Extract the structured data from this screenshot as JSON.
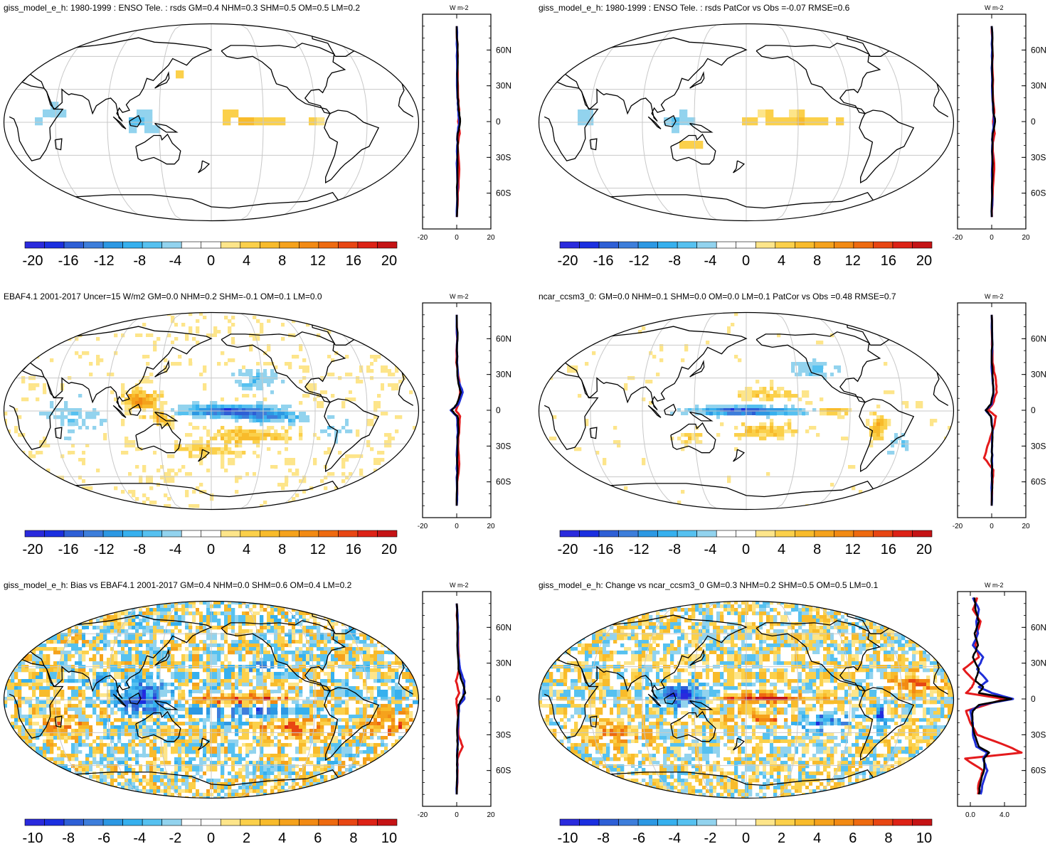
{
  "panels": [
    {
      "title": "giss_model_e_h: 1980-1999 : ENSO Tele. : rsds GM=0.4 NHM=0.3 SHM=0.5 OM=0.5 LM=0.2",
      "colorbar_ticks": [
        "-20",
        "-16",
        "-12",
        "-8",
        "-4",
        "0",
        "4",
        "8",
        "12",
        "16",
        "20"
      ],
      "profile_unit": "W m-2",
      "profile_xticks": [
        "-20",
        "0",
        "20"
      ],
      "profile_xlim": [
        -20,
        20
      ],
      "lat_labels": [
        "60N",
        "30N",
        "0",
        "30S",
        "60S"
      ],
      "pattern": "model",
      "amp": 1.0
    },
    {
      "title": "giss_model_e_h: 1980-1999 : ENSO Tele. : rsds PatCor vs Obs =-0.07 RMSE=0.6",
      "colorbar_ticks": [
        "-20",
        "-16",
        "-12",
        "-8",
        "-4",
        "0",
        "4",
        "8",
        "12",
        "16",
        "20"
      ],
      "profile_unit": "W m-2",
      "profile_xticks": [
        "-20",
        "0",
        "20"
      ],
      "profile_xlim": [
        -20,
        20
      ],
      "lat_labels": [
        "60N",
        "30N",
        "0",
        "30S",
        "60S"
      ],
      "pattern": "model",
      "amp": 1.0
    },
    {
      "title": "EBAF4.1 2001-2017 Uncer=15 W/m2 GM=0.0 NHM=0.2 SHM=-0.1 OM=0.1 LM=0.0",
      "colorbar_ticks": [
        "-20",
        "-16",
        "-12",
        "-8",
        "-4",
        "0",
        "4",
        "8",
        "12",
        "16",
        "20"
      ],
      "profile_unit": "W m-2",
      "profile_xticks": [
        "-20",
        "0",
        "20"
      ],
      "profile_xlim": [
        -20,
        20
      ],
      "lat_labels": [
        "60N",
        "30N",
        "0",
        "30S",
        "60S"
      ],
      "pattern": "obs",
      "amp": 1.4
    },
    {
      "title": "ncar_ccsm3_0: GM=0.0 NHM=0.1 SHM=0.0 OM=0.0 LM=0.1 PatCor vs Obs =0.48 RMSE=0.7",
      "colorbar_ticks": [
        "-20",
        "-16",
        "-12",
        "-8",
        "-4",
        "0",
        "4",
        "8",
        "12",
        "16",
        "20"
      ],
      "profile_unit": "W m-2",
      "profile_xticks": [
        "-20",
        "0",
        "20"
      ],
      "profile_xlim": [
        -20,
        20
      ],
      "lat_labels": [
        "60N",
        "30N",
        "0",
        "30S",
        "60S"
      ],
      "pattern": "ncar",
      "amp": 1.3
    },
    {
      "title": "giss_model_e_h: Bias vs EBAF4.1 2001-2017 GM=0.4 NHM=0.0 SHM=0.6 OM=0.4 LM=0.2",
      "colorbar_ticks": [
        "-10",
        "-8",
        "-6",
        "-4",
        "-2",
        "0",
        "2",
        "4",
        "6",
        "8",
        "10"
      ],
      "profile_unit": "W m-2",
      "profile_xticks": [
        "-20",
        "0",
        "20"
      ],
      "profile_xlim": [
        -20,
        20
      ],
      "lat_labels": [
        "60N",
        "30N",
        "0",
        "30S",
        "60S"
      ],
      "pattern": "bias",
      "amp": 1.6
    },
    {
      "title": "giss_model_e_h: Change vs ncar_ccsm3_0 GM=0.3 NHM=0.2 SHM=0.5 OM=0.5 LM=0.1",
      "colorbar_ticks": [
        "-10",
        "-8",
        "-6",
        "-4",
        "-2",
        "0",
        "2",
        "4",
        "6",
        "8",
        "10"
      ],
      "profile_unit": "W m-2",
      "profile_xticks": [
        "0.0",
        "4.0"
      ],
      "profile_xlim": [
        -1.5,
        6.5
      ],
      "lat_labels": [
        "60N",
        "30N",
        "0",
        "30S",
        "60S"
      ],
      "pattern": "change",
      "amp": 1.6
    }
  ],
  "chart_data": [
    {
      "type": "heatmap",
      "title": "giss_model_e_h: 1980-1999 : ENSO Tele. : rsds GM=0.4 NHM=0.3 SHM=0.5 OM=0.5 LM=0.2",
      "projection": "Robinson, Pacific-centred",
      "colorbar_range": [
        -22,
        22
      ],
      "colorbar_ticks": [
        -20,
        -16,
        -12,
        -8,
        -4,
        0,
        4,
        8,
        12,
        16,
        20
      ],
      "zonal_mean_profile": {
        "xlabel": "W m-2",
        "xlim": [
          -20,
          20
        ],
        "lat": [
          80,
          60,
          40,
          20,
          10,
          0,
          -10,
          -20,
          -40,
          -60,
          -80
        ],
        "series": [
          {
            "name": "black",
            "values": [
              0,
              0.5,
              0.3,
              0.6,
              1.0,
              2.0,
              0.6,
              0.5,
              0.4,
              0.3,
              0.1
            ]
          },
          {
            "name": "red",
            "values": [
              0,
              0.4,
              0.6,
              0.8,
              1.5,
              0.8,
              1.8,
              0.6,
              1.5,
              0.6,
              0.1
            ]
          },
          {
            "name": "blue",
            "values": [
              0,
              0.3,
              0.2,
              0.4,
              0.8,
              1.5,
              0.5,
              0.3,
              0.2,
              0.2,
              0.1
            ]
          }
        ]
      }
    },
    {
      "type": "heatmap",
      "title": "giss_model_e_h: 1980-1999 : ENSO Tele. : rsds PatCor vs Obs =-0.07 RMSE=0.6",
      "projection": "Robinson, Pacific-centred",
      "colorbar_range": [
        -22,
        22
      ],
      "colorbar_ticks": [
        -20,
        -16,
        -12,
        -8,
        -4,
        0,
        4,
        8,
        12,
        16,
        20
      ],
      "zonal_mean_profile": {
        "xlabel": "W m-2",
        "xlim": [
          -20,
          20
        ],
        "lat": [
          80,
          60,
          40,
          20,
          10,
          0,
          -10,
          -20,
          -40,
          -60,
          -80
        ],
        "series": [
          {
            "name": "black",
            "values": [
              0,
              0.5,
              0.3,
              0.6,
              1.0,
              2.0,
              0.6,
              0.5,
              0.4,
              0.3,
              0.1
            ]
          },
          {
            "name": "red",
            "values": [
              0,
              0.4,
              0.6,
              0.8,
              1.5,
              0.8,
              1.8,
              0.6,
              1.5,
              0.6,
              0.1
            ]
          },
          {
            "name": "blue",
            "values": [
              0,
              0.3,
              0.2,
              0.4,
              0.8,
              1.5,
              0.5,
              0.3,
              0.2,
              0.2,
              0.1
            ]
          }
        ]
      }
    },
    {
      "type": "heatmap",
      "title": "EBAF4.1 2001-2017 Uncer=15 W/m2 GM=0.0 NHM=0.2 SHM=-0.1 OM=0.1 LM=0.0",
      "projection": "Robinson, Pacific-centred",
      "colorbar_range": [
        -22,
        22
      ],
      "colorbar_ticks": [
        -20,
        -16,
        -12,
        -8,
        -4,
        0,
        4,
        8,
        12,
        16,
        20
      ],
      "zonal_mean_profile": {
        "xlabel": "W m-2",
        "xlim": [
          -20,
          20
        ],
        "lat": [
          80,
          60,
          40,
          25,
          15,
          5,
          0,
          -5,
          -15,
          -30,
          -45,
          -60,
          -80
        ],
        "series": [
          {
            "name": "black",
            "values": [
              0,
              0.5,
              0,
              0.8,
              2.5,
              0,
              -3.0,
              0.5,
              1.0,
              0.5,
              0.3,
              0.2,
              0
            ]
          },
          {
            "name": "red",
            "values": [
              0,
              0.3,
              -0.2,
              1.5,
              2.0,
              1.0,
              -0.5,
              2.0,
              1.5,
              0.8,
              1.5,
              0.3,
              0
            ]
          },
          {
            "name": "blue",
            "values": [
              0,
              0.4,
              0.2,
              1.0,
              3.5,
              1.0,
              -3.5,
              0,
              0.5,
              0.3,
              0.2,
              0.1,
              0
            ]
          }
        ]
      }
    },
    {
      "type": "heatmap",
      "title": "ncar_ccsm3_0: GM=0.0 NHM=0.1 SHM=0.0 OM=0.0 LM=0.1 PatCor vs Obs =0.48 RMSE=0.7",
      "projection": "Robinson, Pacific-centred",
      "colorbar_range": [
        -22,
        22
      ],
      "colorbar_ticks": [
        -20,
        -16,
        -12,
        -8,
        -4,
        0,
        4,
        8,
        12,
        16,
        20
      ],
      "zonal_mean_profile": {
        "xlabel": "W m-2",
        "xlim": [
          -20,
          20
        ],
        "lat": [
          80,
          60,
          40,
          25,
          15,
          5,
          0,
          -5,
          -15,
          -30,
          -40,
          -50,
          -60,
          -80
        ],
        "series": [
          {
            "name": "black",
            "values": [
              0,
              0.3,
              0,
              0.8,
              1.0,
              -0.5,
              -3.5,
              -0.5,
              0.5,
              0.2,
              0,
              0.2,
              0.2,
              0
            ]
          },
          {
            "name": "red",
            "values": [
              0,
              0.2,
              0.5,
              2.5,
              3.0,
              0.5,
              -2.0,
              2.5,
              1.0,
              -2.5,
              -4.5,
              1.0,
              0.5,
              0
            ]
          },
          {
            "name": "blue",
            "values": [
              0,
              0.3,
              0,
              0.5,
              1.0,
              0,
              -3.5,
              -0.5,
              0.5,
              0.3,
              0.2,
              0.2,
              0.1,
              0
            ]
          }
        ]
      }
    },
    {
      "type": "heatmap",
      "title": "giss_model_e_h: Bias vs EBAF4.1 2001-2017 GM=0.4 NHM=0.0 SHM=0.6 OM=0.4 LM=0.2",
      "projection": "Robinson, Pacific-centred",
      "colorbar_range": [
        -11,
        11
      ],
      "colorbar_ticks": [
        -10,
        -8,
        -6,
        -4,
        -2,
        0,
        2,
        4,
        6,
        8,
        10
      ],
      "zonal_mean_profile": {
        "xlabel": "W m-2",
        "xlim": [
          -20,
          20
        ],
        "lat": [
          80,
          60,
          40,
          25,
          15,
          5,
          0,
          -5,
          -15,
          -30,
          -40,
          -50,
          -60,
          -80
        ],
        "series": [
          {
            "name": "black",
            "values": [
              0,
              0.5,
              0.5,
              1.0,
              3.0,
              5.0,
              3.0,
              1.0,
              0.8,
              0.3,
              0.5,
              0.3,
              0.2,
              0
            ]
          },
          {
            "name": "red",
            "values": [
              0,
              0.5,
              1.0,
              1.5,
              -0.5,
              1.5,
              -0.3,
              0,
              0.8,
              1.0,
              3.5,
              0.5,
              0.5,
              0
            ]
          },
          {
            "name": "blue",
            "values": [
              0,
              0.8,
              0.8,
              2.0,
              4.5,
              4.0,
              4.5,
              1.5,
              1.0,
              0.5,
              0.5,
              0.3,
              0.2,
              0
            ]
          }
        ]
      }
    },
    {
      "type": "heatmap",
      "title": "giss_model_e_h: Change vs ncar_ccsm3_0 GM=0.3 NHM=0.2 SHM=0.5 OM=0.5 LM=0.1",
      "projection": "Robinson, Pacific-centred",
      "colorbar_range": [
        -11,
        11
      ],
      "colorbar_ticks": [
        -10,
        -8,
        -6,
        -4,
        -2,
        0,
        2,
        4,
        6,
        8,
        10
      ],
      "zonal_mean_profile": {
        "xlabel": "W m-2",
        "xlim": [
          -1.5,
          6.5
        ],
        "lat": [
          85,
          75,
          65,
          55,
          45,
          35,
          25,
          15,
          10,
          5,
          0,
          -5,
          -10,
          -20,
          -30,
          -40,
          -45,
          -50,
          -60,
          -70,
          -80
        ],
        "series": [
          {
            "name": "black",
            "values": [
              0.5,
              0.6,
              1.0,
              0.5,
              0.9,
              0.3,
              1.0,
              0.6,
              1.5,
              1.0,
              4.8,
              1.0,
              0.3,
              0.2,
              0.5,
              1.0,
              2.2,
              1.6,
              1.6,
              1.2,
              1.0
            ]
          },
          {
            "name": "red",
            "values": [
              0.8,
              0.3,
              1.2,
              0.8,
              0.6,
              1.0,
              -0.8,
              0.5,
              0.2,
              -0.5,
              4.0,
              1.8,
              -0.5,
              0.0,
              0.8,
              4.5,
              6.0,
              -0.6,
              1.5,
              1.0,
              0.9
            ]
          },
          {
            "name": "blue",
            "values": [
              0.3,
              1.0,
              0.7,
              0.9,
              0.3,
              1.5,
              0.8,
              2.0,
              1.0,
              2.5,
              5.0,
              1.2,
              0.0,
              0.3,
              0.3,
              0.7,
              2.0,
              1.5,
              2.0,
              1.5,
              1.2
            ]
          }
        ]
      }
    }
  ],
  "colors": {
    "palette": [
      "#2a2add",
      "#1b2fe0",
      "#2e5fd6",
      "#3d7edb",
      "#2c98e3",
      "#36b0ee",
      "#56c1f0",
      "#92d3ee",
      "#ffffff",
      "#ffffff",
      "#fde58a",
      "#fbd04a",
      "#f8bb2b",
      "#f5a21c",
      "#f28a13",
      "#ee6a10",
      "#e84613",
      "#dd2216",
      "#c51315"
    ],
    "coast": "#000000",
    "grid": "#c8c8c8",
    "profile_black": "#000000",
    "profile_red": "#e41a1c",
    "profile_blue": "#1f2fd8"
  }
}
